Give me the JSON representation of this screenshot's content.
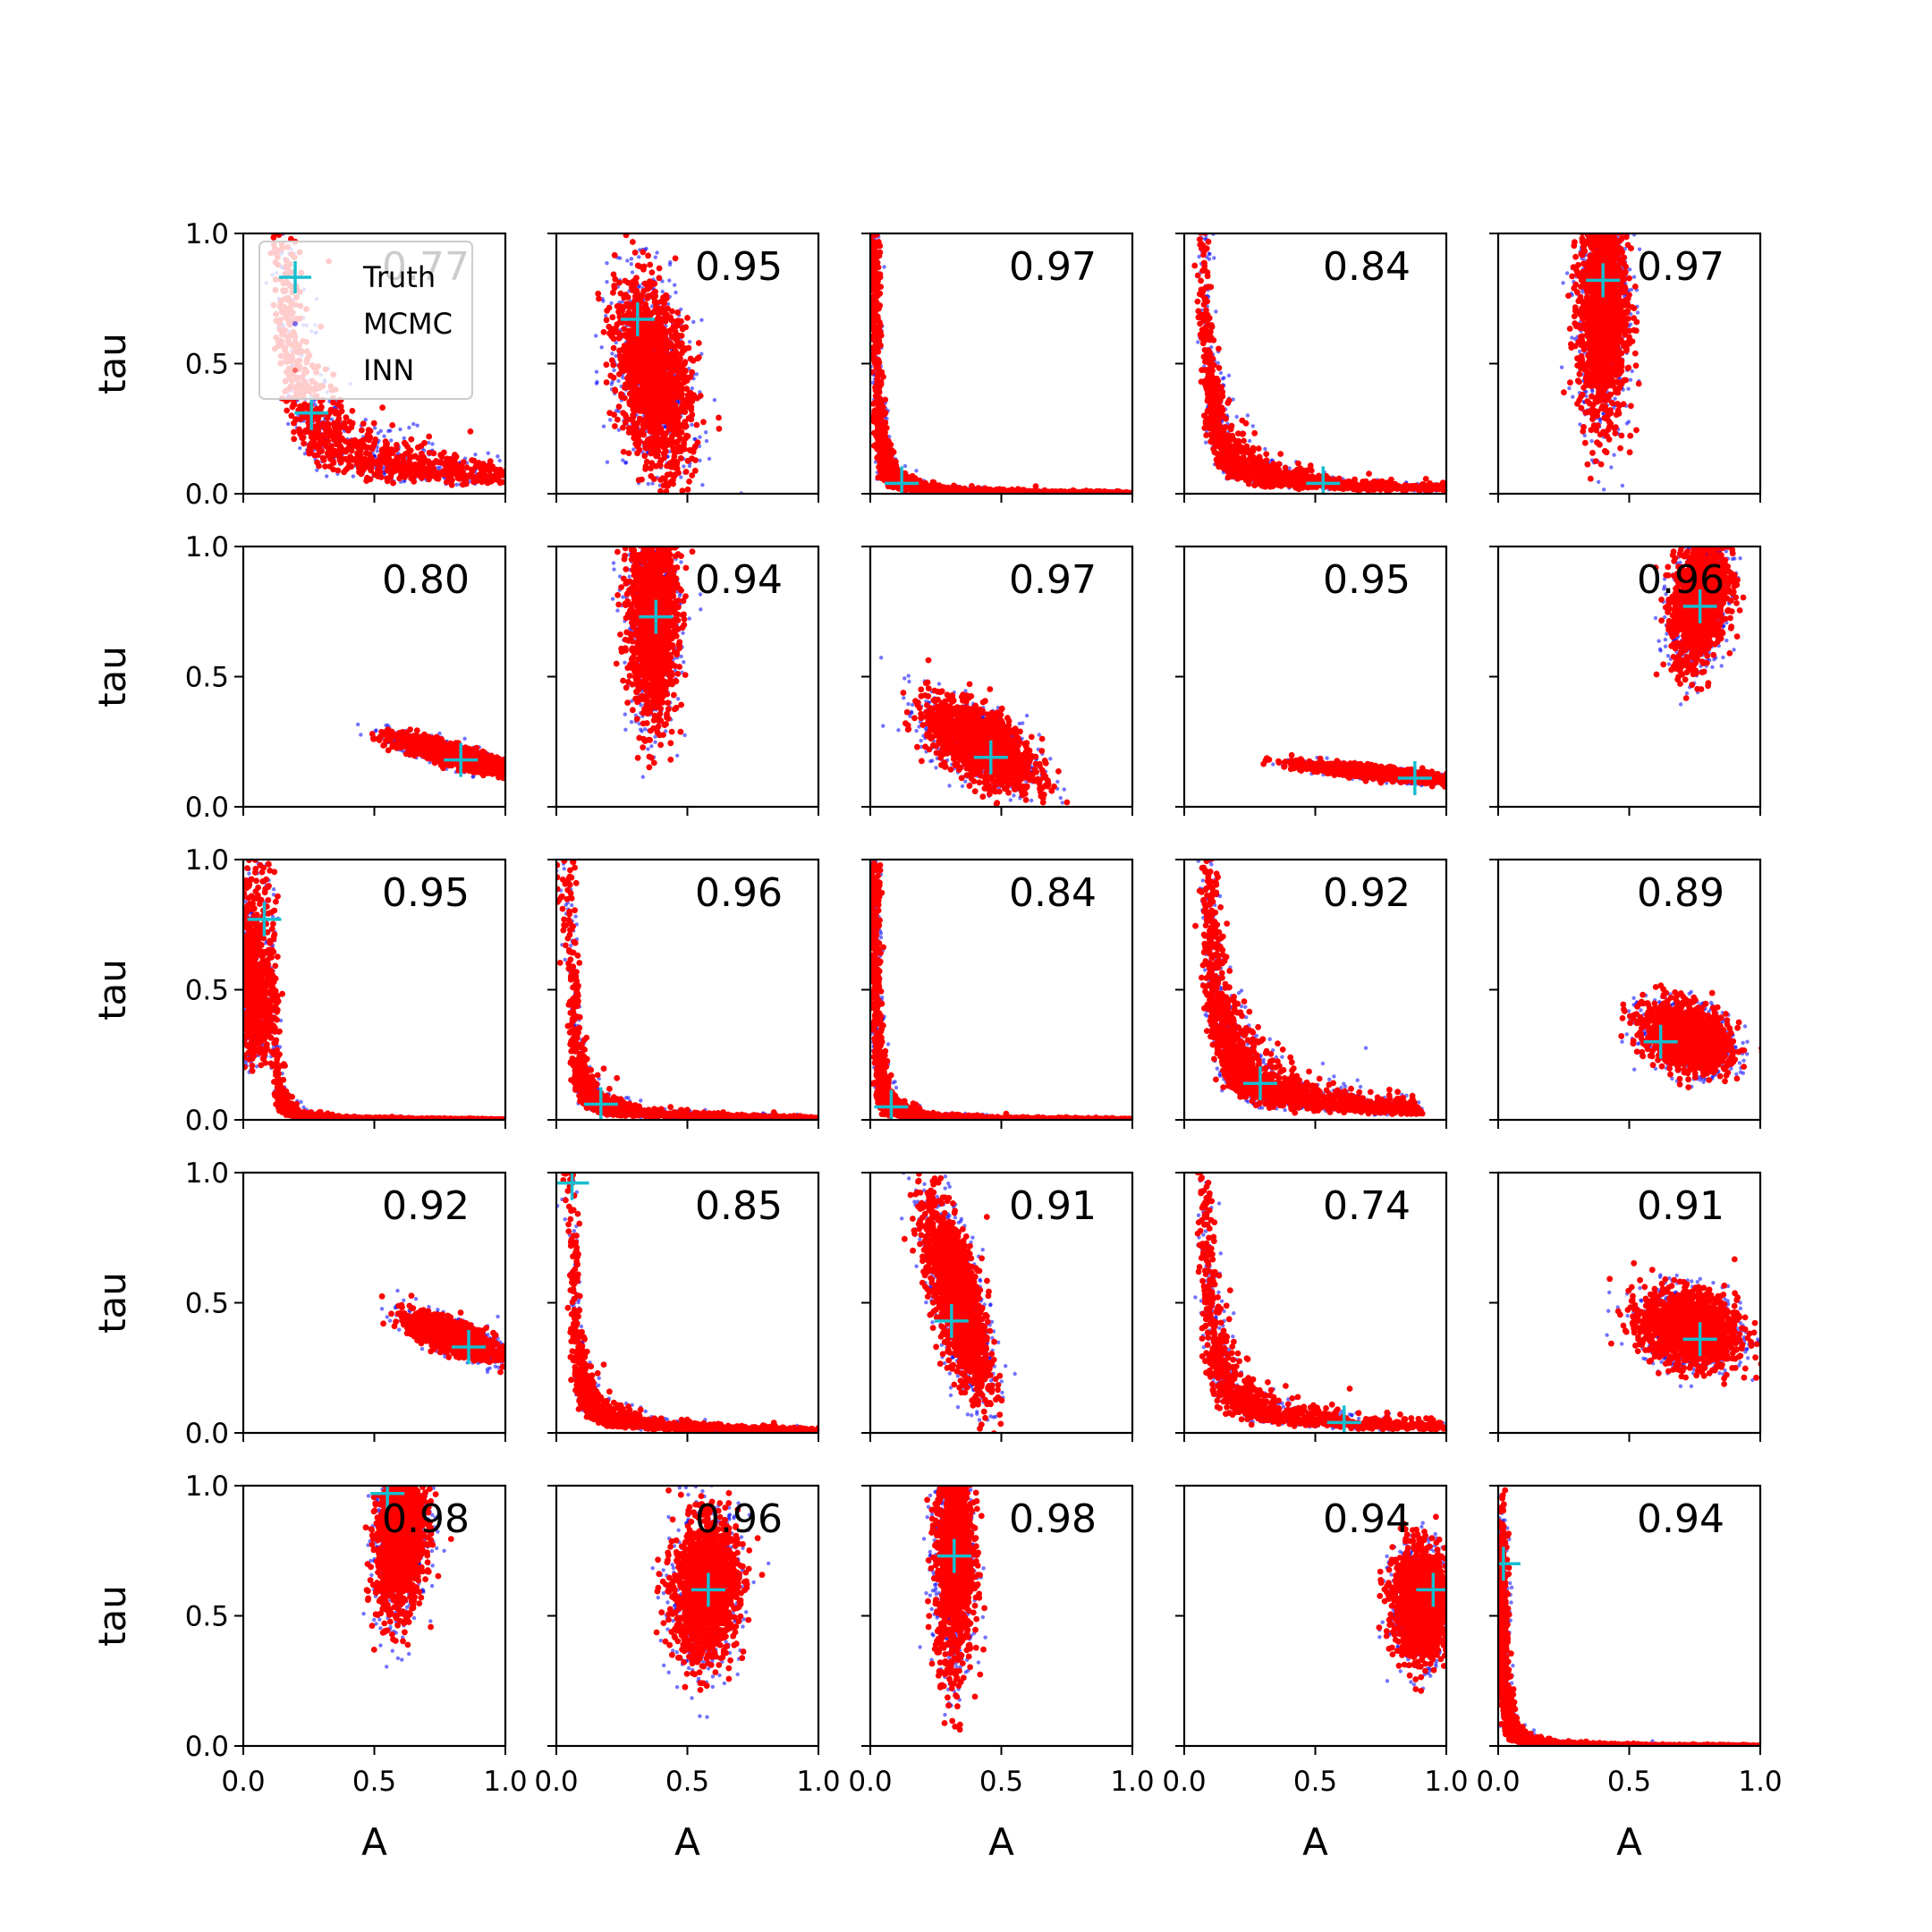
{
  "chart_data": {
    "type": "scatter",
    "layout": {
      "rows": 5,
      "cols": 5
    },
    "xlabel": "A",
    "ylabel": "tau",
    "xlim": [
      0,
      1
    ],
    "ylim": [
      0,
      1
    ],
    "xticks": [
      "0.0",
      "0.5",
      "1.0"
    ],
    "yticks": [
      "0.0",
      "0.5",
      "1.0"
    ],
    "legend": {
      "location": "upper-left of first panel",
      "entries": [
        {
          "label": "Truth",
          "marker": "plus",
          "color": "#17becf"
        },
        {
          "label": "MCMC",
          "marker": "dot",
          "color": "#0000ff"
        },
        {
          "label": "INN",
          "marker": "dot",
          "color": "#ff0000"
        }
      ]
    },
    "colors": {
      "mcmc": "#0000ff",
      "inn": "#ff0000",
      "truth": "#17becf"
    },
    "panels": [
      {
        "score": "0.77",
        "truth": [
          0.26,
          0.31
        ],
        "shape": "banana",
        "p": [
          0.09,
          0.01
        ],
        "a_min": 0.03,
        "a_max": 1.0
      },
      {
        "score": "0.95",
        "truth": [
          0.31,
          0.67
        ],
        "shape": "blob",
        "center": [
          0.37,
          0.45
        ],
        "spread": [
          0.07,
          0.17
        ],
        "rho": -0.35
      },
      {
        "score": "0.97",
        "truth": [
          0.12,
          0.04
        ],
        "shape": "banana",
        "p": [
          0.02,
          0.0
        ],
        "a_min": 0.01,
        "a_max": 1.0
      },
      {
        "score": "0.84",
        "truth": [
          0.53,
          0.04
        ],
        "shape": "banana",
        "p": [
          0.05,
          0.0
        ],
        "a_min": 0.02,
        "a_max": 1.0
      },
      {
        "score": "0.97",
        "truth": [
          0.4,
          0.82
        ],
        "shape": "blob",
        "center": [
          0.4,
          0.72
        ],
        "spread": [
          0.045,
          0.22
        ],
        "rho": 0.0
      },
      {
        "score": "0.80",
        "truth": [
          0.83,
          0.18
        ],
        "shape": "blob",
        "center": [
          0.8,
          0.2
        ],
        "spread": [
          0.11,
          0.035
        ],
        "rho": -0.85
      },
      {
        "score": "0.94",
        "truth": [
          0.38,
          0.73
        ],
        "shape": "blob",
        "center": [
          0.37,
          0.74
        ],
        "spread": [
          0.045,
          0.2
        ],
        "rho": 0.0
      },
      {
        "score": "0.97",
        "truth": [
          0.46,
          0.19
        ],
        "shape": "blob",
        "center": [
          0.42,
          0.24
        ],
        "spread": [
          0.1,
          0.08
        ],
        "rho": -0.6
      },
      {
        "score": "0.95",
        "truth": [
          0.88,
          0.11
        ],
        "shape": "blob",
        "center": [
          0.74,
          0.13
        ],
        "spread": [
          0.14,
          0.018
        ],
        "rho": -0.8
      },
      {
        "score": "0.96",
        "truth": [
          0.77,
          0.77
        ],
        "shape": "blob",
        "center": [
          0.77,
          0.8
        ],
        "spread": [
          0.05,
          0.12
        ],
        "rho": 0.3
      },
      {
        "score": "0.95",
        "truth": [
          0.08,
          0.77
        ],
        "shape": "banana",
        "p": [
          0.12,
          0.0
        ],
        "a_min": 0.01,
        "a_max": 1.0
      },
      {
        "score": "0.96",
        "truth": [
          0.17,
          0.06
        ],
        "shape": "banana",
        "p": [
          0.05,
          0.0
        ],
        "a_min": 0.01,
        "a_max": 1.0
      },
      {
        "score": "0.84",
        "truth": [
          0.08,
          0.05
        ],
        "shape": "banana",
        "p": [
          0.02,
          0.0
        ],
        "a_min": 0.01,
        "a_max": 1.0
      },
      {
        "score": "0.92",
        "truth": [
          0.29,
          0.14
        ],
        "shape": "banana",
        "p": [
          0.05,
          0.0
        ],
        "a_min": 0.07,
        "a_max": 0.9
      },
      {
        "score": "0.89",
        "truth": [
          0.62,
          0.3
        ],
        "shape": "blob",
        "center": [
          0.72,
          0.32
        ],
        "spread": [
          0.08,
          0.06
        ],
        "rho": -0.3
      },
      {
        "score": "0.92",
        "truth": [
          0.86,
          0.33
        ],
        "shape": "blob",
        "center": [
          0.8,
          0.37
        ],
        "spread": [
          0.08,
          0.04
        ],
        "rho": -0.7
      },
      {
        "score": "0.85",
        "truth": [
          0.06,
          0.96
        ],
        "shape": "banana",
        "p": [
          0.05,
          0.0
        ],
        "a_min": 0.01,
        "a_max": 1.0
      },
      {
        "score": "0.91",
        "truth": [
          0.31,
          0.43
        ],
        "shape": "blob",
        "center": [
          0.33,
          0.52
        ],
        "spread": [
          0.06,
          0.18
        ],
        "rho": -0.7
      },
      {
        "score": "0.74",
        "truth": [
          0.61,
          0.04
        ],
        "shape": "banana",
        "p": [
          0.05,
          0.0
        ],
        "a_min": 0.01,
        "a_max": 1.0
      },
      {
        "score": "0.91",
        "truth": [
          0.77,
          0.36
        ],
        "shape": "blob",
        "center": [
          0.73,
          0.4
        ],
        "spread": [
          0.09,
          0.07
        ],
        "rho": -0.2
      },
      {
        "score": "0.98",
        "truth": [
          0.55,
          0.97
        ],
        "shape": "blob",
        "center": [
          0.6,
          0.8
        ],
        "spread": [
          0.045,
          0.14
        ],
        "rho": 0.2
      },
      {
        "score": "0.96",
        "truth": [
          0.58,
          0.6
        ],
        "shape": "blob",
        "center": [
          0.57,
          0.6
        ],
        "spread": [
          0.06,
          0.13
        ],
        "rho": 0.1
      },
      {
        "score": "0.98",
        "truth": [
          0.32,
          0.73
        ],
        "shape": "blob",
        "center": [
          0.32,
          0.75
        ],
        "spread": [
          0.035,
          0.22
        ],
        "rho": 0.0
      },
      {
        "score": "0.94",
        "truth": [
          0.95,
          0.6
        ],
        "shape": "blob",
        "center": [
          0.9,
          0.55
        ],
        "spread": [
          0.05,
          0.1
        ],
        "rho": 0.0
      },
      {
        "score": "0.94",
        "truth": [
          0.02,
          0.7
        ],
        "shape": "banana",
        "p": [
          0.02,
          0.0
        ],
        "a_min": 0.005,
        "a_max": 1.0
      }
    ]
  }
}
